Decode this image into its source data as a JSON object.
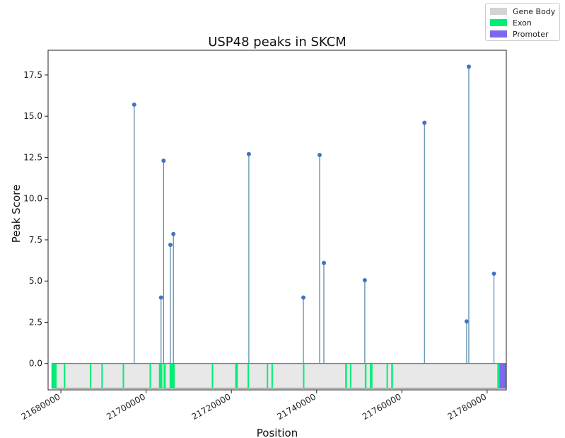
{
  "chart_data": {
    "type": "stem",
    "title": "USP48 peaks in SKCM",
    "xlabel": "Position",
    "ylabel": "Peak Score",
    "xlim": [
      21677000,
      21784500
    ],
    "ylim": [
      -1.6,
      19.0
    ],
    "x_ticks": [
      21680000,
      21700000,
      21720000,
      21740000,
      21760000,
      21780000
    ],
    "x_tick_labels": [
      "21680000",
      "21700000",
      "21720000",
      "21740000",
      "21760000",
      "21780000"
    ],
    "y_ticks": [
      0.0,
      2.5,
      5.0,
      7.5,
      10.0,
      12.5,
      15.0,
      17.5
    ],
    "y_tick_labels": [
      "0.0",
      "2.5",
      "5.0",
      "7.5",
      "10.0",
      "12.5",
      "15.0",
      "17.5"
    ],
    "peaks": [
      {
        "x": 21697200,
        "y": 15.7
      },
      {
        "x": 21703500,
        "y": 4.0
      },
      {
        "x": 21704100,
        "y": 12.3
      },
      {
        "x": 21705700,
        "y": 7.2
      },
      {
        "x": 21706400,
        "y": 7.85
      },
      {
        "x": 21724100,
        "y": 12.7
      },
      {
        "x": 21736900,
        "y": 4.0
      },
      {
        "x": 21740700,
        "y": 12.65
      },
      {
        "x": 21741700,
        "y": 6.1
      },
      {
        "x": 21751300,
        "y": 5.05
      },
      {
        "x": 21765300,
        "y": 14.6
      },
      {
        "x": 21775200,
        "y": 2.55
      },
      {
        "x": 21775700,
        "y": 18.0
      },
      {
        "x": 21781600,
        "y": 5.45
      }
    ],
    "gene_body": {
      "start": 21677900,
      "end": 21784500,
      "y_top": 0.0,
      "y_bottom": -1.5
    },
    "exons": [
      {
        "start": 21677900,
        "end": 21679000
      },
      {
        "start": 21680700,
        "end": 21681000
      },
      {
        "start": 21686800,
        "end": 21687100
      },
      {
        "start": 21689500,
        "end": 21689800
      },
      {
        "start": 21694500,
        "end": 21694800
      },
      {
        "start": 21700800,
        "end": 21701100
      },
      {
        "start": 21703000,
        "end": 21703800
      },
      {
        "start": 21704100,
        "end": 21704600
      },
      {
        "start": 21705500,
        "end": 21706700
      },
      {
        "start": 21715400,
        "end": 21715700
      },
      {
        "start": 21720900,
        "end": 21721500
      },
      {
        "start": 21723800,
        "end": 21724100
      },
      {
        "start": 21728300,
        "end": 21728600
      },
      {
        "start": 21729400,
        "end": 21729700
      },
      {
        "start": 21736800,
        "end": 21737100
      },
      {
        "start": 21746700,
        "end": 21747100
      },
      {
        "start": 21747800,
        "end": 21748100
      },
      {
        "start": 21751300,
        "end": 21751700
      },
      {
        "start": 21752500,
        "end": 21753100
      },
      {
        "start": 21756400,
        "end": 21756700
      },
      {
        "start": 21757500,
        "end": 21757900
      },
      {
        "start": 21782400,
        "end": 21782900
      }
    ],
    "promoter": {
      "start": 21782900,
      "end": 21784500
    },
    "legend": {
      "placement": "top-right",
      "entries": [
        {
          "label": "Gene Body",
          "color": "#d3d3d3"
        },
        {
          "label": "Exon",
          "color": "#00ee76"
        },
        {
          "label": "Promoter",
          "color": "#7b68ee"
        }
      ]
    },
    "colors": {
      "stem": "#5d8fb0",
      "marker": "#4472c4",
      "gene_body": "#e8e8e8",
      "gene_body_edge": "#555555",
      "exon": "#00ee76",
      "promoter": "#7b68ee"
    }
  }
}
